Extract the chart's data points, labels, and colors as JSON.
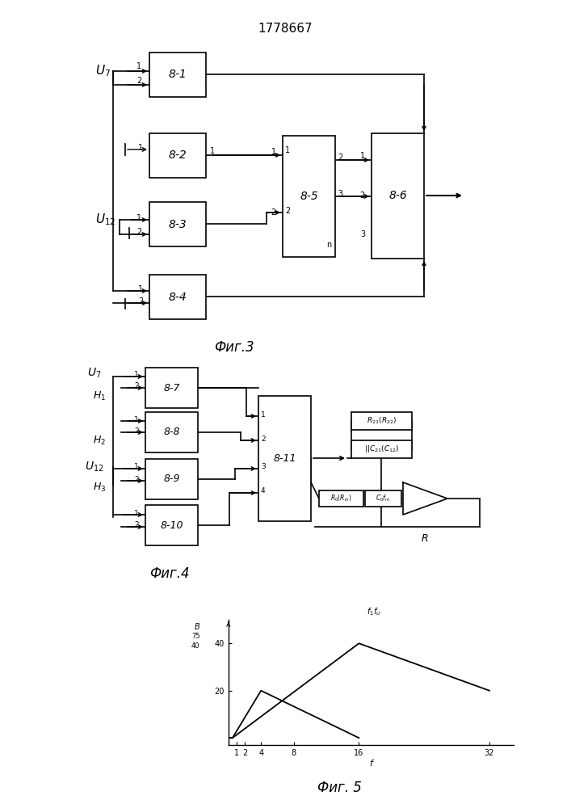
{
  "title": "1778667",
  "fig3_label": "Фиг.3",
  "fig4_label": "Фиг.4",
  "fig5_label": "Фиг. 5",
  "bg_color": "#ffffff",
  "graph5": {
    "curve1_x": [
      0,
      0.5,
      4,
      16
    ],
    "curve1_y": [
      0,
      0,
      20,
      0
    ],
    "curve2_x": [
      0,
      0.5,
      16,
      32
    ],
    "curve2_y": [
      0,
      0,
      40,
      20
    ],
    "xtick_pos": [
      1,
      2,
      4,
      8,
      16,
      32
    ],
    "xtick_labels": [
      "1",
      "2",
      "4",
      "8",
      "16",
      "32"
    ],
    "ytick_pos": [
      20,
      40
    ],
    "ytick_labels": [
      "20",
      "40"
    ],
    "xlim": [
      0,
      35
    ],
    "ylim": [
      -3,
      50
    ]
  }
}
